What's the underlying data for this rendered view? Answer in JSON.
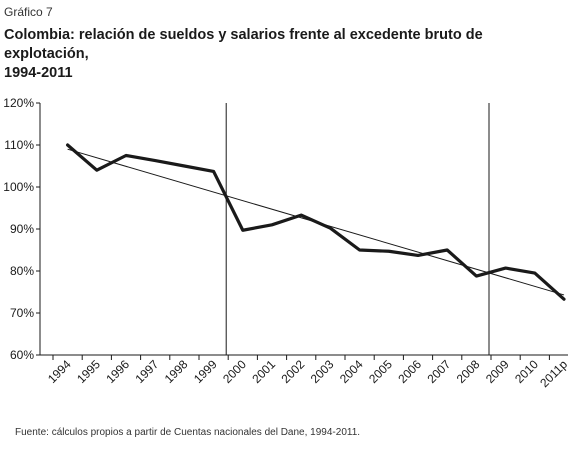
{
  "figure": {
    "label": "Gráfico 7",
    "title_line1": "Colombia: relación de sueldos y salarios frente al excedente bruto de explotación,",
    "title_line2": "1994-2011",
    "source": "Fuente: cálculos propios a partir de Cuentas nacionales del Dane, 1994-2011."
  },
  "chart_data": {
    "type": "line",
    "title": "Colombia: relación de sueldos y salarios frente al excedente bruto de explotación, 1994-2011",
    "xlabel": "",
    "ylabel": "",
    "categories": [
      "1994",
      "1995",
      "1996",
      "1997",
      "1998",
      "1999",
      "2000",
      "2001",
      "2002",
      "2003",
      "2004",
      "2005",
      "2006",
      "2007",
      "2008",
      "2009",
      "2010",
      "2011p"
    ],
    "series": [
      {
        "values": [
          110,
          104,
          107.5,
          106.3,
          105,
          103.7,
          89.7,
          91,
          93.3,
          90.2,
          85,
          84.7,
          83.7,
          85,
          78.8,
          80.7,
          79.5,
          73.3
        ]
      }
    ],
    "trendline": {
      "start": 109,
      "end": 74.3
    },
    "reference_lines": [
      "1999",
      "2008"
    ],
    "ylim": [
      60,
      120
    ],
    "yticks": [
      "60%",
      "70%",
      "80%",
      "90%",
      "100%",
      "110%",
      "120%"
    ],
    "grid": false,
    "colors": {
      "series": "#1a1a1a",
      "trend": "#1a1a1a",
      "axis": "#1a1a1a"
    }
  }
}
